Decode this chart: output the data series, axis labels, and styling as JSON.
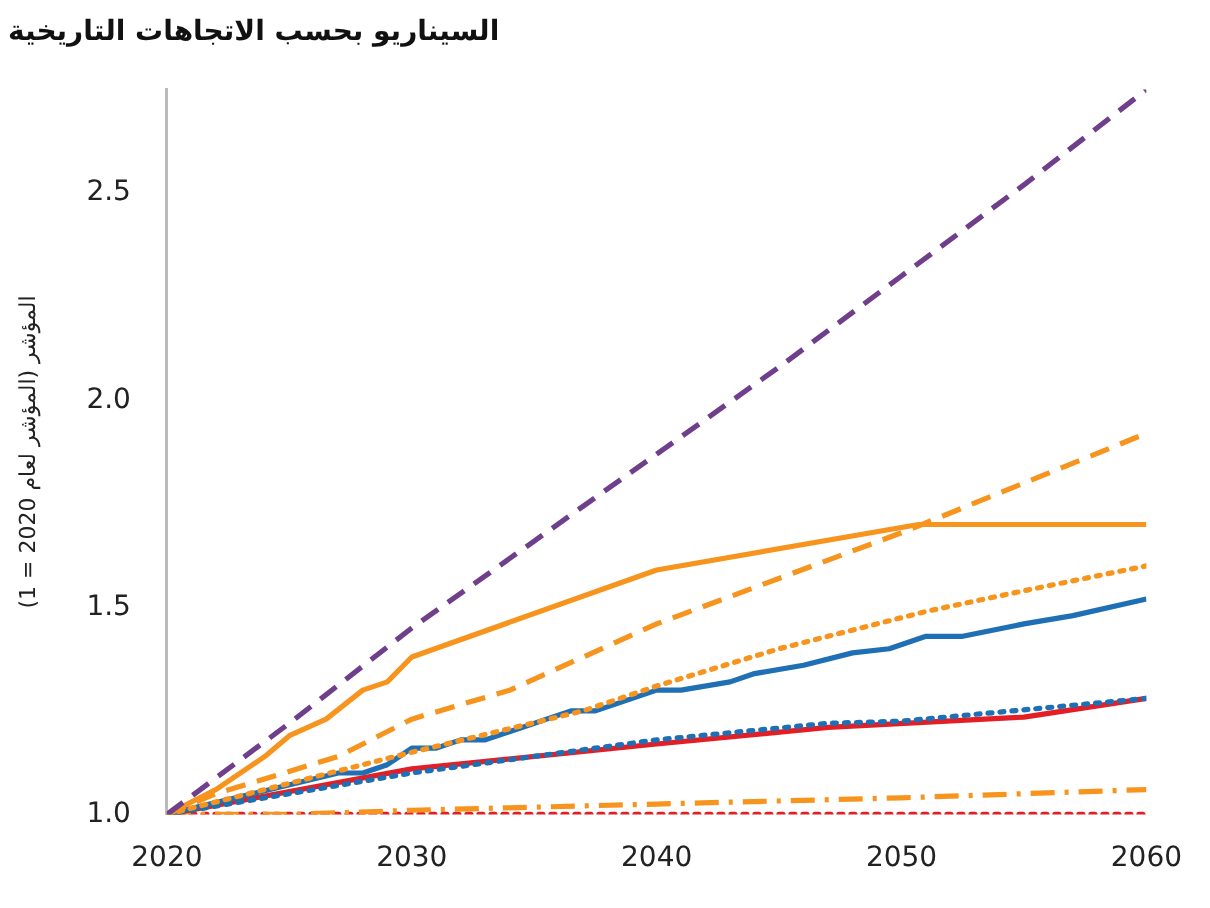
{
  "chart_data": {
    "type": "line",
    "title": "السيناريو بحسب الاتجاهات التاريخية",
    "ylabel": "المؤشر (المؤشر لعام 2020 = 1)",
    "xlim": [
      2020,
      2060
    ],
    "xticks": [
      2020,
      2030,
      2040,
      2050,
      2060
    ],
    "ylim": [
      1,
      2.75
    ],
    "yticks": [
      {
        "value": 1,
        "label": "1.0"
      },
      {
        "value": 1.5,
        "label": "1.5"
      },
      {
        "value": 2,
        "label": "2.0"
      },
      {
        "value": 2.5,
        "label": "2.5"
      }
    ],
    "grid": false,
    "legend": false,
    "marker": "none",
    "series": [
      {
        "color": "#6f3f8b",
        "line_style": "dashed",
        "x": [
          2020,
          2025,
          2030,
          2035,
          2040,
          2045,
          2050,
          2055,
          2060
        ],
        "values": [
          1.0,
          1.22,
          1.45,
          1.66,
          1.87,
          2.08,
          2.3,
          2.52,
          2.75
        ]
      },
      {
        "color": "#f7941d",
        "line_style": "solid",
        "x": [
          2020,
          2022,
          2024,
          2025,
          2026.5,
          2028,
          2029,
          2030,
          2040,
          2050.7,
          2060
        ],
        "values": [
          1.0,
          1.06,
          1.14,
          1.19,
          1.23,
          1.3,
          1.32,
          1.38,
          1.59,
          1.7,
          1.7
        ]
      },
      {
        "color": "#f7941d",
        "line_style": "dashed",
        "x": [
          2020,
          2022,
          2027,
          2030,
          2034,
          2040,
          2050,
          2060
        ],
        "values": [
          1.0,
          1.05,
          1.14,
          1.23,
          1.3,
          1.46,
          1.68,
          1.92
        ]
      },
      {
        "color": "#f7941d",
        "line_style": "dotted",
        "x": [
          2020,
          2028,
          2030,
          2037,
          2040,
          2045,
          2051,
          2055,
          2060
        ],
        "values": [
          1.0,
          1.12,
          1.15,
          1.25,
          1.31,
          1.4,
          1.49,
          1.54,
          1.6
        ]
      },
      {
        "color": "#1f6fb5",
        "line_style": "solid",
        "x": [
          2020,
          2027,
          2028,
          2029,
          2030,
          2031,
          2032,
          2033,
          2036.5,
          2037.5,
          2040,
          2041,
          2043,
          2044,
          2046,
          2048,
          2049.5,
          2051,
          2052.5,
          2055,
          2057,
          2060
        ],
        "values": [
          1.0,
          1.1,
          1.1,
          1.12,
          1.16,
          1.16,
          1.18,
          1.18,
          1.25,
          1.25,
          1.3,
          1.3,
          1.32,
          1.34,
          1.36,
          1.39,
          1.4,
          1.43,
          1.43,
          1.46,
          1.48,
          1.52
        ]
      },
      {
        "color": "#1f6fb5",
        "line_style": "dotted",
        "x": [
          2020,
          2030,
          2040,
          2047,
          2050,
          2060
        ],
        "values": [
          1.0,
          1.1,
          1.18,
          1.22,
          1.225,
          1.28
        ]
      },
      {
        "color": "#e31e24",
        "line_style": "solid",
        "x": [
          2020,
          2030,
          2040,
          2047,
          2055,
          2060
        ],
        "values": [
          1.0,
          1.11,
          1.17,
          1.21,
          1.235,
          1.28
        ]
      },
      {
        "color": "#f7941d",
        "line_style": "dashdot",
        "x": [
          2020,
          2025,
          2030,
          2040,
          2050,
          2060
        ],
        "values": [
          1.0,
          1.0,
          1.01,
          1.025,
          1.04,
          1.06
        ]
      },
      {
        "color": "#e31e24",
        "line_style": "dotted",
        "x": [
          2020,
          2060
        ],
        "values": [
          1.0,
          1.0
        ]
      }
    ]
  }
}
